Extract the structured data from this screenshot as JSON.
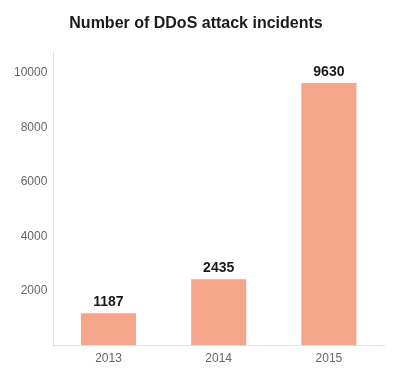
{
  "chart_data": {
    "type": "bar",
    "title": "Number of DDoS attack incidents",
    "categories": [
      "2013",
      "2014",
      "2015"
    ],
    "values": [
      1187,
      2435,
      9630
    ],
    "color": "#F4A58A",
    "ylim": [
      0,
      10800
    ],
    "yticks": [
      2000,
      4000,
      6000,
      8000,
      10000
    ],
    "grid": false,
    "data_labels": true
  }
}
